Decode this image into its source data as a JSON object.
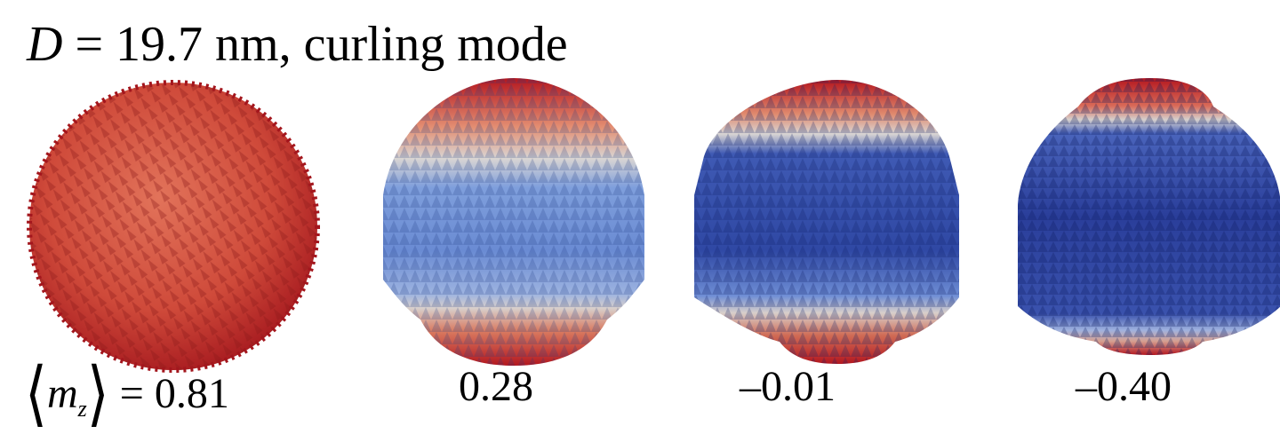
{
  "title": {
    "variable": "D",
    "rest": " = 19.7 nm, curling mode"
  },
  "quantity": {
    "symbol": "m",
    "subscript": "z",
    "equals": " = "
  },
  "panels": [
    {
      "value": "0.81",
      "mz": 0.81
    },
    {
      "value": "0.28",
      "mz": 0.28
    },
    {
      "value": "–0.01",
      "mz": -0.01
    },
    {
      "value": "–0.40",
      "mz": -0.4
    }
  ],
  "colors": {
    "positive": "#b3171f",
    "positive_light": "#e2735a",
    "neutral": "#d9d5d3",
    "negative_light": "#7f9fdc",
    "negative": "#2a3e9a"
  }
}
